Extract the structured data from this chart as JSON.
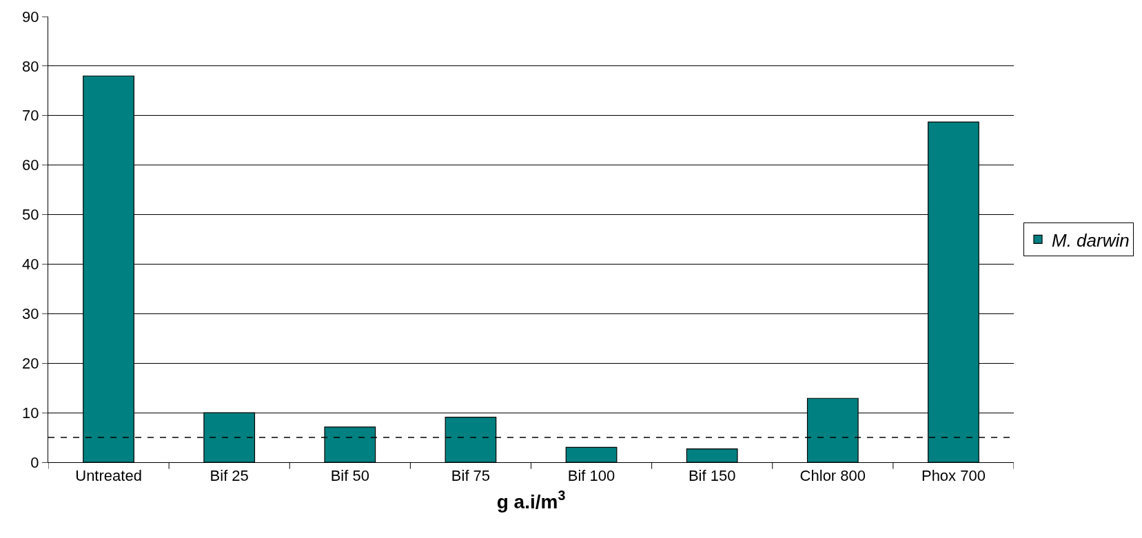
{
  "chart_data": {
    "type": "bar",
    "xlabel": "g a.i/m$^{3}$",
    "categories": [
      "Untreated",
      "Bif 25",
      "Bif 50",
      "Bif 75",
      "Bif 100",
      "Bif 150",
      "Chlor 800",
      "Phox 700"
    ],
    "series": [
      {
        "name": "M. darwin",
        "color": "#008080",
        "values": [
          78,
          10,
          7.1,
          9.1,
          3,
          2.7,
          12.9,
          68.7
        ]
      }
    ],
    "ylim": [
      0,
      90
    ],
    "yticks": [
      0,
      10,
      20,
      30,
      40,
      50,
      60,
      70,
      80,
      90
    ],
    "grid": "y",
    "legend": "right",
    "ref_lines": [
      {
        "axis": "y",
        "value": 5,
        "color": "#000000",
        "line_style": "dashed"
      }
    ]
  }
}
